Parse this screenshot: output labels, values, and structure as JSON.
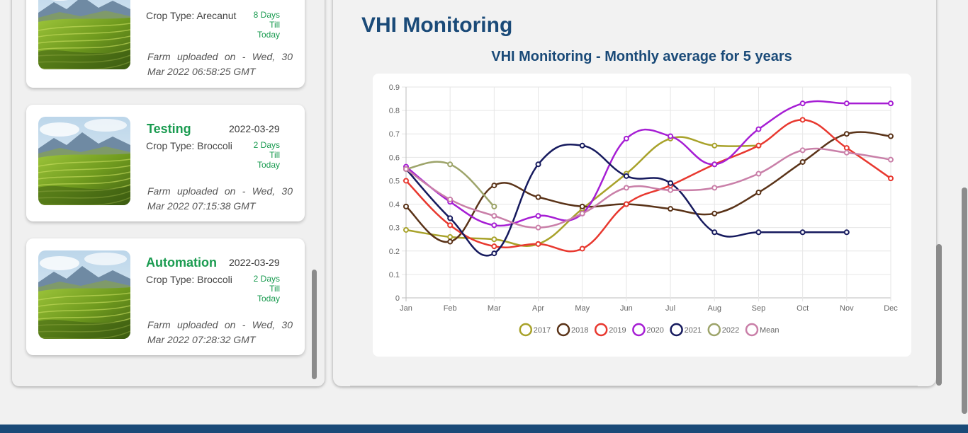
{
  "farms": [
    {
      "name": "",
      "date": "",
      "crop": "Crop Type: Arecanut",
      "days_till_today": "8 Days",
      "days_till_word": "Till",
      "days_today_word": "Today",
      "uploaded": "Farm uploaded on - Wed, 30 Mar 2022 06:58:25 GMT"
    },
    {
      "name": "Testing",
      "date": "2022-03-29",
      "crop": "Crop Type: Broccoli",
      "days_till_today": "2 Days",
      "days_till_word": "Till",
      "days_today_word": "Today",
      "uploaded": "Farm uploaded on - Wed, 30 Mar 2022 07:15:38 GMT"
    },
    {
      "name": "Automation",
      "date": "2022-03-29",
      "crop": "Crop Type: Broccoli",
      "days_till_today": "2 Days",
      "days_till_word": "Till",
      "days_today_word": "Today",
      "uploaded": "Farm uploaded on - Wed, 30 Mar 2022 07:28:32 GMT"
    }
  ],
  "vhi": {
    "title": "VHI Monitoring"
  },
  "chart_data": {
    "type": "line",
    "title": "VHI Monitoring - Monthly average for 5 years",
    "xlabel": "",
    "ylabel": "",
    "categories": [
      "Jan",
      "Feb",
      "Mar",
      "Apr",
      "May",
      "Jun",
      "Jul",
      "Aug",
      "Sep",
      "Oct",
      "Nov",
      "Dec"
    ],
    "ylim": [
      0,
      0.9
    ],
    "yticks": [
      "0",
      "0.1",
      "0.2",
      "0.3",
      "0.4",
      "0.5",
      "0.6",
      "0.7",
      "0.8",
      "0.9"
    ],
    "grid": true,
    "legend_position": "bottom",
    "series": [
      {
        "name": "2017",
        "color": "#a8a22a",
        "values": [
          0.29,
          0.26,
          0.25,
          0.23,
          0.38,
          0.53,
          0.68,
          0.65,
          0.65,
          null,
          null,
          null
        ]
      },
      {
        "name": "2018",
        "color": "#5a3318",
        "values": [
          0.39,
          0.24,
          0.48,
          0.43,
          0.39,
          0.4,
          0.38,
          0.36,
          0.45,
          0.58,
          0.7,
          0.69
        ]
      },
      {
        "name": "2019",
        "color": "#e8382f",
        "values": [
          0.5,
          0.31,
          0.22,
          0.23,
          0.21,
          0.4,
          0.48,
          0.57,
          0.65,
          0.76,
          0.64,
          0.51
        ]
      },
      {
        "name": "2020",
        "color": "#a61ed4",
        "values": [
          0.56,
          0.41,
          0.31,
          0.35,
          0.36,
          0.68,
          0.69,
          0.57,
          0.72,
          0.83,
          0.83,
          0.83
        ]
      },
      {
        "name": "2021",
        "color": "#161a5e",
        "values": [
          0.55,
          0.34,
          0.19,
          0.57,
          0.65,
          0.52,
          0.49,
          0.28,
          0.28,
          0.28,
          0.28,
          null
        ]
      },
      {
        "name": "2022",
        "color": "#9da46a",
        "values": [
          0.55,
          0.57,
          0.39,
          null,
          null,
          null,
          null,
          null,
          null,
          null,
          null,
          null
        ]
      },
      {
        "name": "Mean",
        "color": "#c97fa8",
        "values": [
          0.55,
          0.42,
          0.35,
          0.3,
          0.36,
          0.47,
          0.46,
          0.47,
          0.53,
          0.63,
          0.62,
          0.59
        ]
      }
    ]
  }
}
